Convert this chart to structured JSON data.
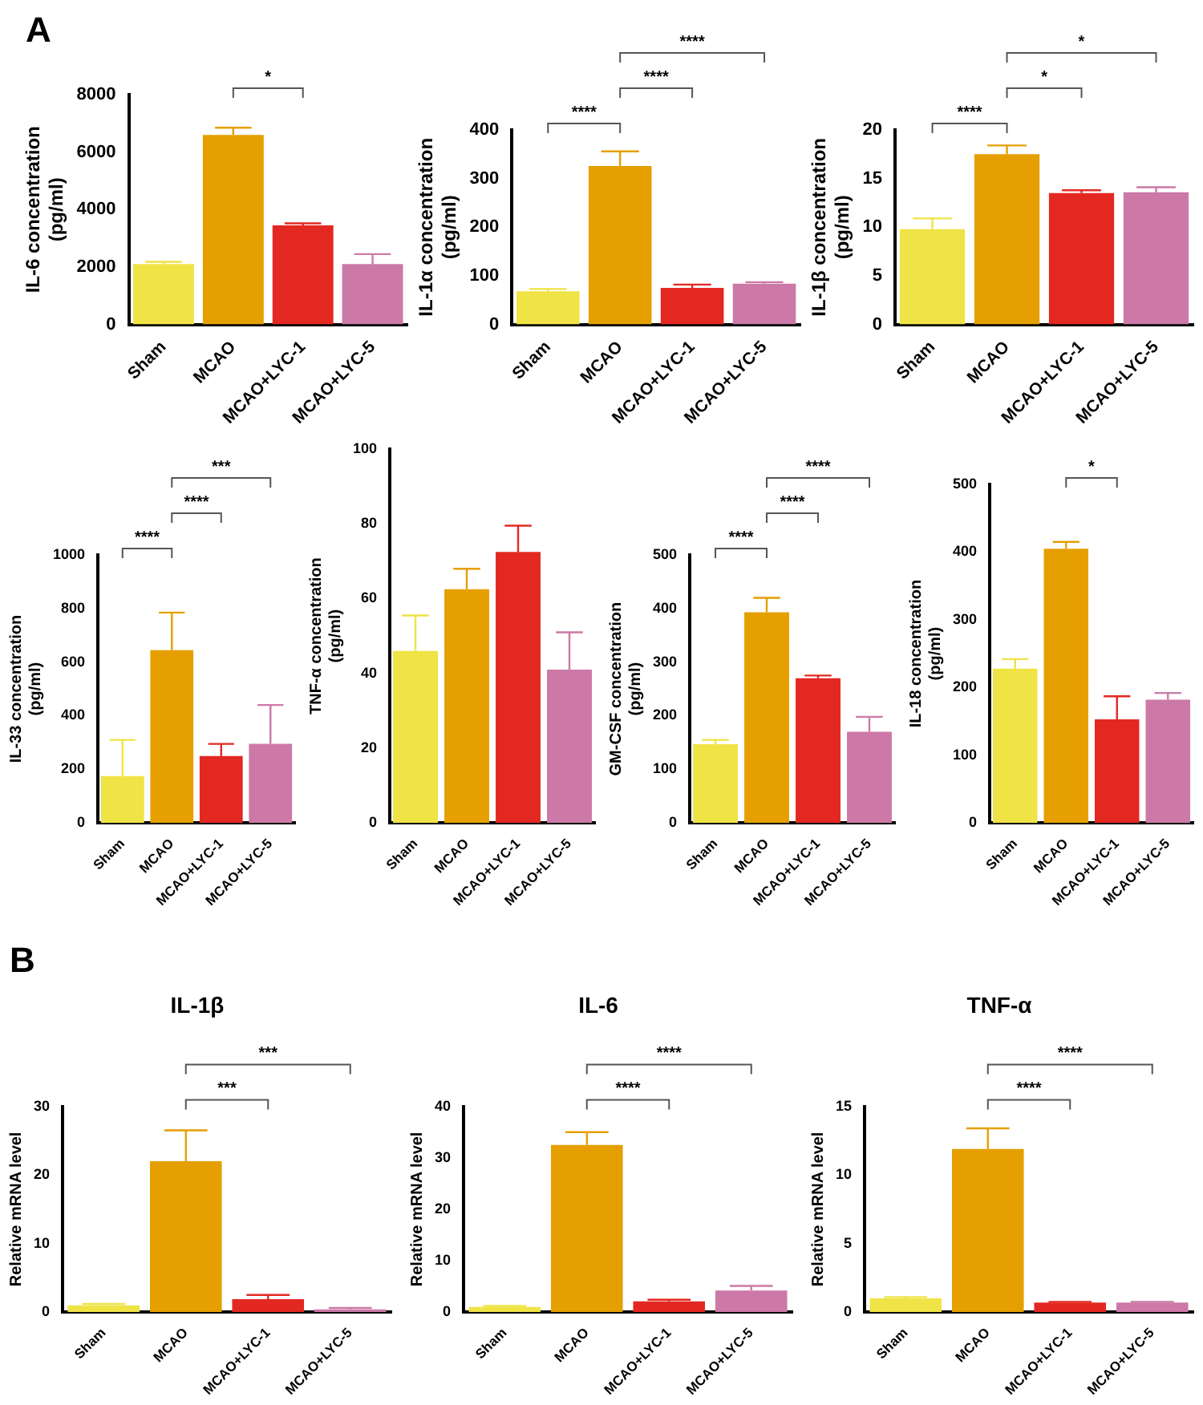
{
  "chart_data": [
    {
      "type": "bar",
      "ylabel": "IL-6 concentration (pg/ml)",
      "categories": [
        "Sham",
        "MCAO",
        "MCAO+LYC-1",
        "MCAO+LYC-5"
      ],
      "values": [
        2100,
        6600,
        3450,
        2100
      ],
      "errors": [
        [
          2100,
          2180
        ],
        [
          6600,
          6850
        ],
        [
          3450,
          3520
        ],
        [
          2100,
          2450
        ]
      ],
      "colors": [
        "#efe346",
        "#e59f00",
        "#e32822",
        "#cc79a7"
      ],
      "ylim": [
        0,
        8000
      ],
      "yticks": [
        0,
        2000,
        4000,
        6000,
        8000
      ],
      "annotations": [
        "A",
        "*"
      ]
    },
    {
      "type": "bar",
      "ylabel": "IL-1α concentration (pg/ml)",
      "categories": [
        "Sham",
        "MCAO",
        "MCAO+LYC-1",
        "MCAO+LYC-5"
      ],
      "values": [
        68,
        326,
        75,
        84
      ],
      "errors": [
        [
          68,
          73
        ],
        [
          326,
          356
        ],
        [
          75,
          82
        ],
        [
          84,
          87
        ]
      ],
      "colors": [
        "#efe346",
        "#e59f00",
        "#e32822",
        "#cc79a7"
      ],
      "ylim": [
        0,
        400
      ],
      "yticks": [
        0,
        100,
        200,
        300,
        400
      ],
      "annotations": [
        "****",
        "****",
        "****"
      ]
    },
    {
      "type": "bar",
      "ylabel": "IL-1β concentration (pg/ml)",
      "categories": [
        "Sham",
        "MCAO",
        "MCAO+LYC-1",
        "MCAO+LYC-5"
      ],
      "values": [
        9.8,
        17.5,
        13.5,
        13.6
      ],
      "errors": [
        [
          9.8,
          10.9
        ],
        [
          17.5,
          18.4
        ],
        [
          13.5,
          13.8
        ],
        [
          13.6,
          14.1
        ]
      ],
      "colors": [
        "#efe346",
        "#e59f00",
        "#e32822",
        "#cc79a7"
      ],
      "ylim": [
        0,
        20
      ],
      "yticks": [
        0,
        5,
        10,
        15,
        20
      ],
      "annotations": [
        "****",
        "*",
        "*"
      ]
    },
    {
      "type": "bar",
      "ylabel": "IL-33 concentration (pg/ml)",
      "categories": [
        "Sham",
        "MCAO",
        "MCAO+LYC-1",
        "MCAO+LYC-5"
      ],
      "values": [
        175,
        645,
        250,
        295
      ],
      "errors": [
        [
          175,
          310
        ],
        [
          645,
          785
        ],
        [
          250,
          295
        ],
        [
          295,
          440
        ]
      ],
      "colors": [
        "#efe346",
        "#e59f00",
        "#e32822",
        "#cc79a7"
      ],
      "ylim": [
        0,
        1000
      ],
      "yticks": [
        0,
        200,
        400,
        600,
        800,
        1000
      ],
      "annotations": [
        "****",
        "****",
        "***"
      ]
    },
    {
      "type": "bar",
      "ylabel": "TNF-α concentration (pg/ml)",
      "categories": [
        "Sham",
        "MCAO",
        "MCAO+LYC-1",
        "MCAO+LYC-5"
      ],
      "values": [
        46,
        62.5,
        72.5,
        41
      ],
      "errors": [
        [
          46,
          55.5
        ],
        [
          62.5,
          68
        ],
        [
          72.5,
          79.5
        ],
        [
          41,
          51
        ]
      ],
      "colors": [
        "#efe346",
        "#e59f00",
        "#e32822",
        "#cc79a7"
      ],
      "ylim": [
        0,
        100
      ],
      "yticks": [
        0,
        20,
        40,
        60,
        80,
        100
      ]
    },
    {
      "type": "bar",
      "ylabel": "GM-CSF concentration (pg/ml)",
      "categories": [
        "Sham",
        "MCAO",
        "MCAO+LYC-1",
        "MCAO+LYC-5"
      ],
      "values": [
        147,
        393,
        270,
        170
      ],
      "errors": [
        [
          147,
          155
        ],
        [
          393,
          420
        ],
        [
          270,
          275
        ],
        [
          170,
          198
        ]
      ],
      "colors": [
        "#efe346",
        "#e59f00",
        "#e32822",
        "#cc79a7"
      ],
      "ylim": [
        0,
        500
      ],
      "yticks": [
        0,
        100,
        200,
        300,
        400,
        500
      ],
      "annotations": [
        "****",
        "****",
        "****"
      ]
    },
    {
      "type": "bar",
      "ylabel": "IL-18 concentration (pg/ml)",
      "categories": [
        "Sham",
        "MCAO",
        "MCAO+LYC-1",
        "MCAO+LYC-5"
      ],
      "values": [
        228,
        405,
        153,
        182
      ],
      "errors": [
        [
          228,
          242
        ],
        [
          405,
          415
        ],
        [
          153,
          187
        ],
        [
          182,
          192
        ]
      ],
      "colors": [
        "#efe346",
        "#e59f00",
        "#e32822",
        "#cc79a7"
      ],
      "ylim": [
        0,
        500
      ],
      "yticks": [
        0,
        100,
        200,
        300,
        400,
        500
      ],
      "annotations": [
        "*"
      ]
    },
    {
      "type": "bar",
      "title": "IL-1β",
      "ylabel": "Relative mRNA level",
      "categories": [
        "Sham",
        "MCAO",
        "MCAO+LYC-1",
        "MCAO+LYC-5"
      ],
      "values": [
        1.0,
        22,
        1.9,
        0.4
      ],
      "errors": [
        [
          1.0,
          1.2
        ],
        [
          22,
          26.5
        ],
        [
          1.9,
          2.5
        ],
        [
          0.4,
          0.6
        ]
      ],
      "colors": [
        "#efe346",
        "#e59f00",
        "#e32822",
        "#cc79a7"
      ],
      "ylim": [
        0,
        30
      ],
      "yticks": [
        0,
        10,
        20,
        30
      ],
      "annotations": [
        "B",
        "***",
        "***"
      ]
    },
    {
      "type": "bar",
      "title": "IL-6",
      "ylabel": "Relative mRNA level",
      "categories": [
        "Sham",
        "MCAO",
        "MCAO+LYC-1",
        "MCAO+LYC-5"
      ],
      "values": [
        1.0,
        32.5,
        2.1,
        4.2
      ],
      "errors": [
        [
          1.0,
          1.2
        ],
        [
          32.5,
          35
        ],
        [
          2.1,
          2.4
        ],
        [
          4.2,
          5.1
        ]
      ],
      "colors": [
        "#efe346",
        "#e59f00",
        "#e32822",
        "#cc79a7"
      ],
      "ylim": [
        0,
        40
      ],
      "yticks": [
        0,
        10,
        20,
        30,
        40
      ],
      "annotations": [
        "****",
        "****"
      ]
    },
    {
      "type": "bar",
      "title": "TNF-α",
      "ylabel": "Relative mRNA level",
      "categories": [
        "Sham",
        "MCAO",
        "MCAO+LYC-1",
        "MCAO+LYC-5"
      ],
      "values": [
        1.0,
        11.9,
        0.7,
        0.7
      ],
      "errors": [
        [
          1.0,
          1.1
        ],
        [
          11.9,
          13.4
        ],
        [
          0.7,
          0.75
        ],
        [
          0.7,
          0.75
        ]
      ],
      "colors": [
        "#efe346",
        "#e59f00",
        "#e32822",
        "#cc79a7"
      ],
      "ylim": [
        0,
        15
      ],
      "yticks": [
        0,
        5,
        10,
        15
      ],
      "annotations": [
        "****",
        "****"
      ]
    }
  ]
}
